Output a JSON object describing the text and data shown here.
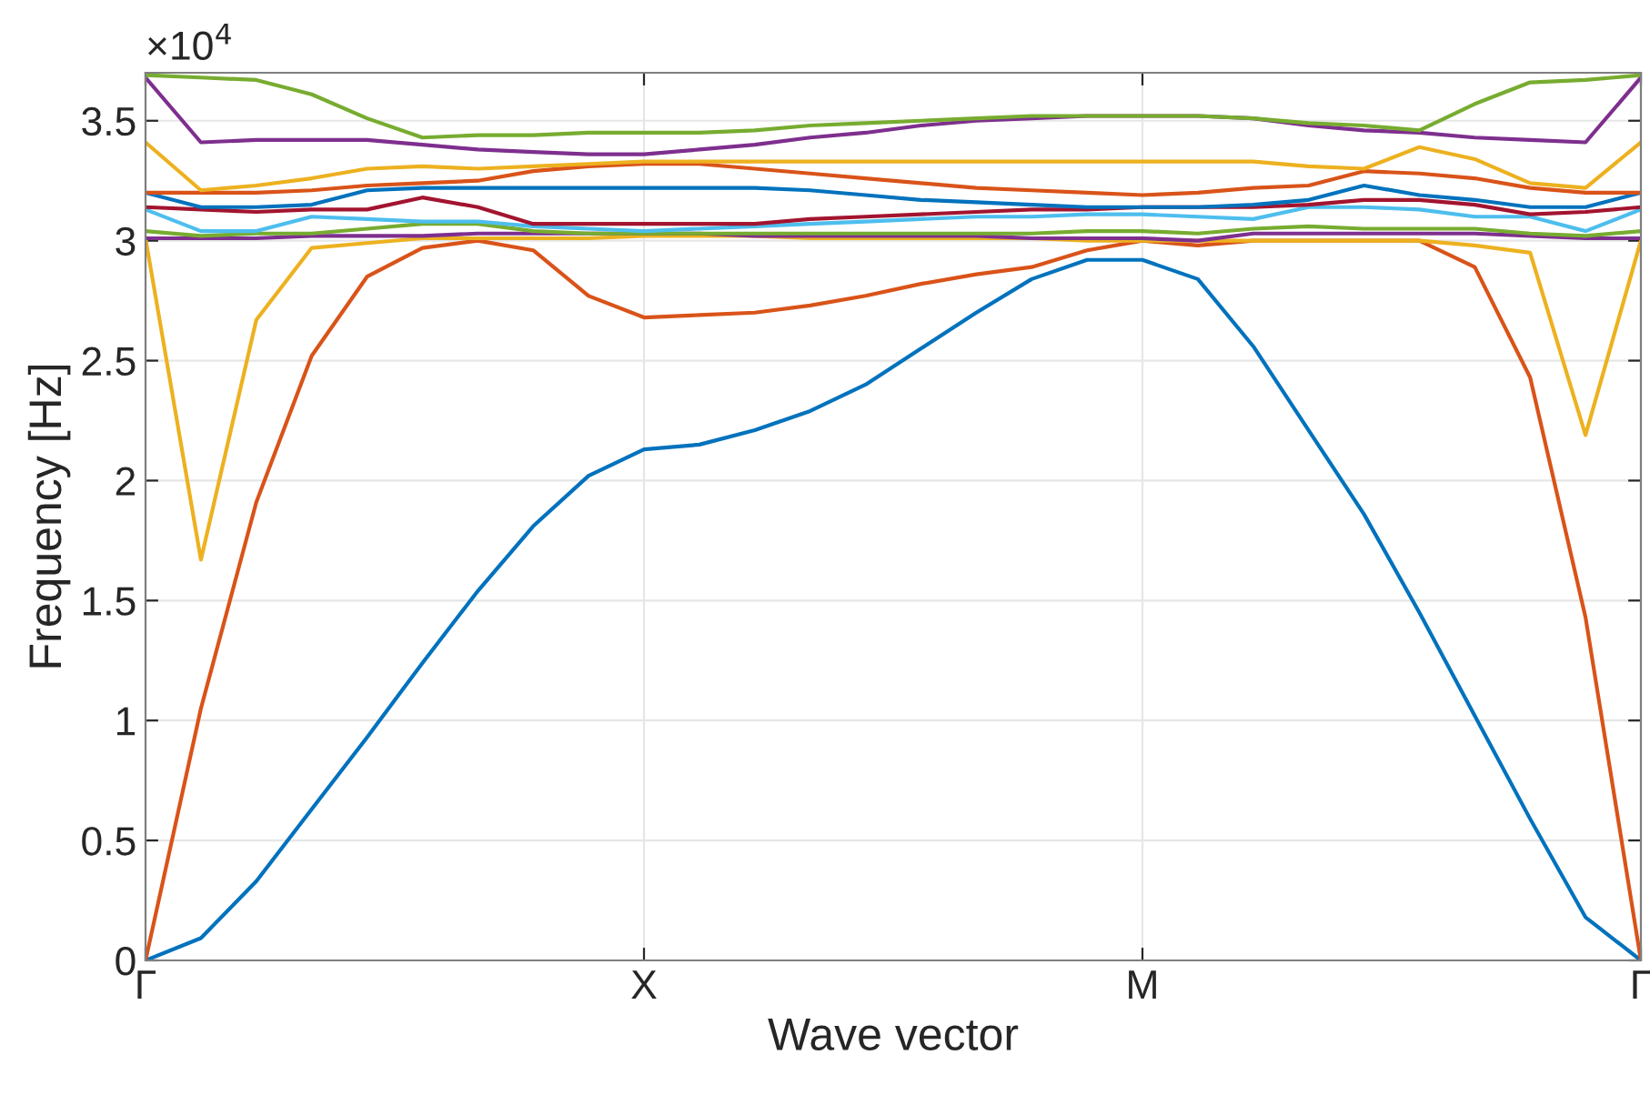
{
  "chart_data": {
    "type": "line",
    "xlabel": "Wave vector",
    "ylabel": "Frequency [Hz]",
    "annotations": [
      "×10$^{4}$"
    ],
    "categories": [
      "Γ",
      null,
      null,
      null,
      null,
      null,
      null,
      null,
      null,
      "X",
      null,
      null,
      null,
      null,
      null,
      null,
      null,
      null,
      "M",
      null,
      null,
      null,
      null,
      null,
      null,
      null,
      null,
      "Γ"
    ],
    "ylim": [
      0,
      3.7
    ],
    "yticks": [
      0,
      0.5,
      1,
      1.5,
      2,
      2.5,
      3,
      3.5
    ],
    "grid": true,
    "marker": "none",
    "line_style": "solid",
    "series": [
      {
        "color": "#0072bd",
        "values": [
          0,
          0.093,
          0.33,
          0.63,
          0.93,
          1.24,
          1.54,
          1.81,
          2.02,
          2.13,
          2.15,
          2.21,
          2.29,
          2.4,
          2.55,
          2.7,
          2.84,
          2.92,
          2.92,
          2.84,
          2.56,
          2.21,
          1.86,
          1.45,
          1.02,
          0.59,
          0.18,
          0
        ]
      },
      {
        "color": "#d95319",
        "values": [
          0,
          1.05,
          1.91,
          2.52,
          2.85,
          2.97,
          3.0,
          2.96,
          2.77,
          2.68,
          2.69,
          2.7,
          2.73,
          2.77,
          2.82,
          2.86,
          2.89,
          2.96,
          3.0,
          2.98,
          3.0,
          3.0,
          3.0,
          3.0,
          2.89,
          2.43,
          1.43,
          0
        ]
      },
      {
        "color": "#edb120",
        "values": [
          3.01,
          1.67,
          2.67,
          2.97,
          2.99,
          3.01,
          3.01,
          3.01,
          3.01,
          3.02,
          3.02,
          3.02,
          3.01,
          3.01,
          3.01,
          3.01,
          3.01,
          3.0,
          3.0,
          3.0,
          3.0,
          3.0,
          3.0,
          3.0,
          2.98,
          2.95,
          2.19,
          3.0
        ]
      },
      {
        "color": "#7e2f8e",
        "values": [
          3.01,
          3.01,
          3.01,
          3.02,
          3.02,
          3.02,
          3.03,
          3.03,
          3.03,
          3.03,
          3.03,
          3.02,
          3.02,
          3.02,
          3.02,
          3.02,
          3.01,
          3.01,
          3.01,
          3.0,
          3.03,
          3.03,
          3.03,
          3.03,
          3.03,
          3.02,
          3.01,
          3.01
        ]
      },
      {
        "color": "#77ac30",
        "values": [
          3.04,
          3.02,
          3.03,
          3.03,
          3.05,
          3.07,
          3.07,
          3.04,
          3.03,
          3.03,
          3.03,
          3.03,
          3.03,
          3.03,
          3.03,
          3.03,
          3.03,
          3.04,
          3.04,
          3.03,
          3.05,
          3.06,
          3.05,
          3.05,
          3.05,
          3.03,
          3.02,
          3.04
        ]
      },
      {
        "color": "#4dbeee",
        "values": [
          3.13,
          3.04,
          3.04,
          3.1,
          3.09,
          3.08,
          3.08,
          3.06,
          3.05,
          3.04,
          3.05,
          3.06,
          3.07,
          3.08,
          3.09,
          3.1,
          3.1,
          3.11,
          3.11,
          3.1,
          3.09,
          3.14,
          3.14,
          3.13,
          3.1,
          3.1,
          3.04,
          3.13
        ]
      },
      {
        "color": "#a2142f",
        "values": [
          3.14,
          3.13,
          3.12,
          3.13,
          3.13,
          3.18,
          3.14,
          3.07,
          3.07,
          3.07,
          3.07,
          3.07,
          3.09,
          3.1,
          3.11,
          3.12,
          3.13,
          3.13,
          3.14,
          3.14,
          3.14,
          3.15,
          3.17,
          3.17,
          3.15,
          3.11,
          3.12,
          3.14
        ]
      },
      {
        "color": "#0072bd",
        "values": [
          3.2,
          3.14,
          3.14,
          3.15,
          3.21,
          3.22,
          3.22,
          3.22,
          3.22,
          3.22,
          3.22,
          3.22,
          3.21,
          3.19,
          3.17,
          3.16,
          3.15,
          3.14,
          3.14,
          3.14,
          3.15,
          3.17,
          3.23,
          3.19,
          3.17,
          3.14,
          3.14,
          3.2
        ]
      },
      {
        "color": "#d95319",
        "values": [
          3.2,
          3.2,
          3.2,
          3.21,
          3.23,
          3.24,
          3.25,
          3.29,
          3.31,
          3.32,
          3.32,
          3.3,
          3.28,
          3.26,
          3.24,
          3.22,
          3.21,
          3.2,
          3.19,
          3.2,
          3.22,
          3.23,
          3.29,
          3.28,
          3.26,
          3.22,
          3.2,
          3.2
        ]
      },
      {
        "color": "#edb120",
        "values": [
          3.41,
          3.21,
          3.23,
          3.26,
          3.3,
          3.31,
          3.3,
          3.31,
          3.32,
          3.33,
          3.33,
          3.33,
          3.33,
          3.33,
          3.33,
          3.33,
          3.33,
          3.33,
          3.33,
          3.33,
          3.33,
          3.31,
          3.3,
          3.39,
          3.34,
          3.24,
          3.22,
          3.41
        ]
      },
      {
        "color": "#7e2f8e",
        "values": [
          3.68,
          3.41,
          3.42,
          3.42,
          3.42,
          3.4,
          3.38,
          3.37,
          3.36,
          3.36,
          3.38,
          3.4,
          3.43,
          3.45,
          3.48,
          3.5,
          3.51,
          3.52,
          3.52,
          3.52,
          3.51,
          3.48,
          3.46,
          3.45,
          3.43,
          3.42,
          3.41,
          3.68
        ]
      },
      {
        "color": "#77ac30",
        "values": [
          3.69,
          3.68,
          3.67,
          3.61,
          3.51,
          3.43,
          3.44,
          3.44,
          3.45,
          3.45,
          3.45,
          3.46,
          3.48,
          3.49,
          3.5,
          3.51,
          3.52,
          3.52,
          3.52,
          3.52,
          3.51,
          3.49,
          3.48,
          3.46,
          3.57,
          3.66,
          3.67,
          3.69
        ]
      }
    ]
  }
}
